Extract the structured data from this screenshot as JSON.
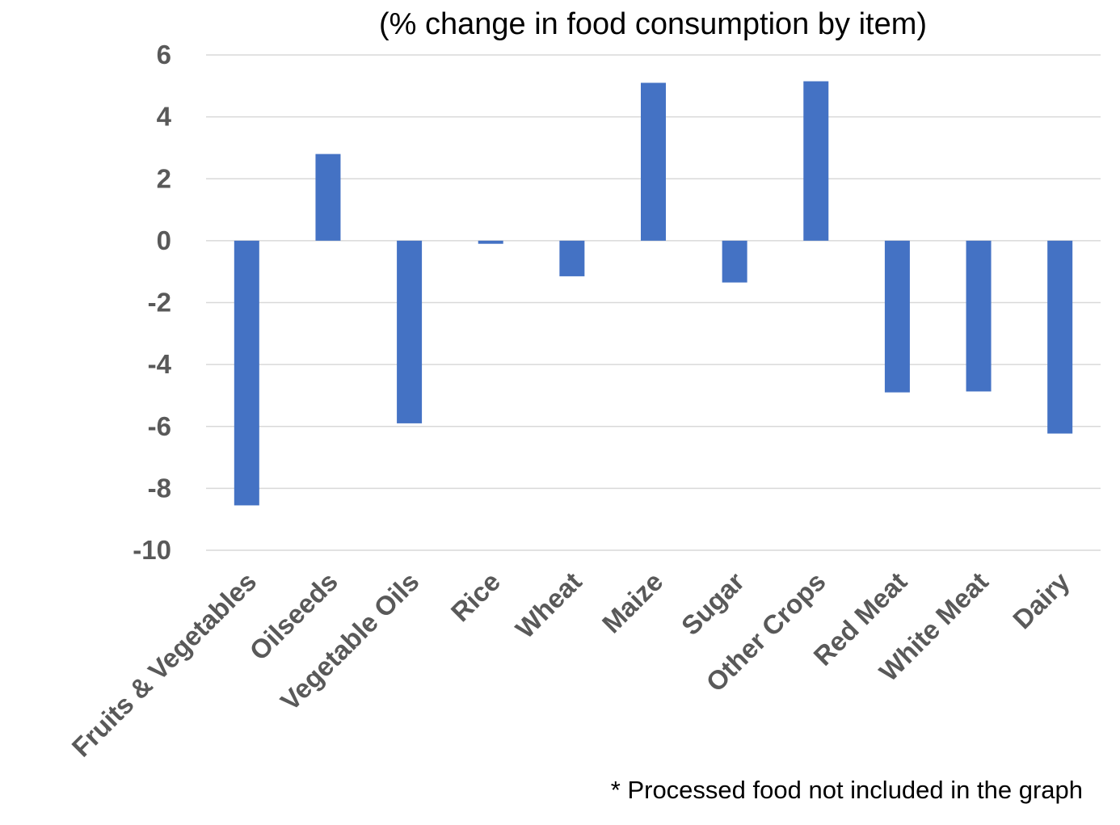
{
  "chart_data": {
    "type": "bar",
    "title": "(% change in food consumption by item)",
    "xlabel": "",
    "ylabel": "",
    "categories": [
      "Fruits & Vegetables",
      "Oilseeds",
      "Vegetable Oils",
      "Rice",
      "Wheat",
      "Maize",
      "Sugar",
      "Other Crops",
      "Red Meat",
      "White Meat",
      "Dairy"
    ],
    "values": [
      -8.55,
      2.8,
      -5.9,
      -0.1,
      -1.15,
      5.1,
      -1.35,
      5.15,
      -4.9,
      -4.87,
      -6.23
    ],
    "ylim": [
      -10,
      6
    ],
    "yticks": [
      "6",
      "4",
      "2",
      "0",
      "-2",
      "-4",
      "-6",
      "-8",
      "-10"
    ],
    "ytick_values": [
      6,
      4,
      2,
      0,
      -2,
      -4,
      -6,
      -8,
      -10
    ],
    "grid": true,
    "bar_color": "#4472C4",
    "gridline_color": "#D9D9D9",
    "tick_label_color": "#595959"
  },
  "footnote": "* Processed food not included in the graph"
}
